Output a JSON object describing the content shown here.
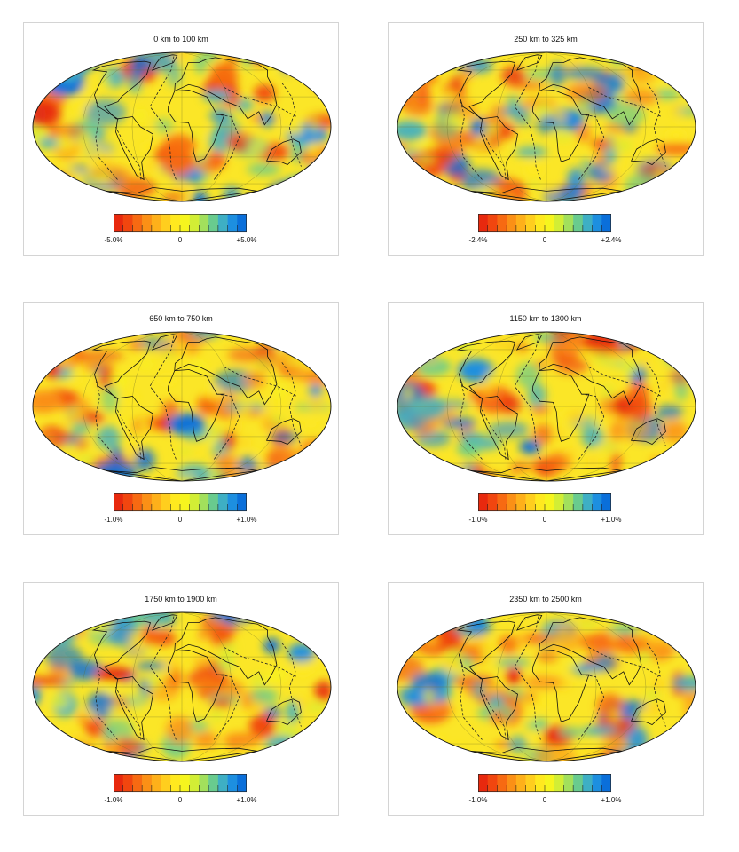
{
  "colorscale": [
    "#e8290e",
    "#f1460f",
    "#f76a12",
    "#fb9016",
    "#feb01a",
    "#ffce1e",
    "#ffe91f",
    "#f6f51e",
    "#d2ee35",
    "#a2e05c",
    "#69cb8e",
    "#3eafc4",
    "#1d8fe0",
    "#0a6fda"
  ],
  "panels": [
    {
      "title": "0 km to 100 km",
      "scale_min": "-5.0%",
      "scale_mid": "0",
      "scale_max": "+5.0%",
      "seed": 11
    },
    {
      "title": "250 km to 325 km",
      "scale_min": "-2.4%",
      "scale_mid": "0",
      "scale_max": "+2.4%",
      "seed": 23
    },
    {
      "title": "650 km to 750 km",
      "scale_min": "-1.0%",
      "scale_mid": "0",
      "scale_max": "+1.0%",
      "seed": 37
    },
    {
      "title": "1150 km to 1300 km",
      "scale_min": "-1.0%",
      "scale_mid": "0",
      "scale_max": "+1.0%",
      "seed": 41
    },
    {
      "title": "1750 km to 1900 km",
      "scale_min": "-1.0%",
      "scale_mid": "0",
      "scale_max": "+1.0%",
      "seed": 53
    },
    {
      "title": "2350 km to 2500 km",
      "scale_min": "-1.0%",
      "scale_mid": "0",
      "scale_max": "+1.0%",
      "seed": 67
    }
  ]
}
